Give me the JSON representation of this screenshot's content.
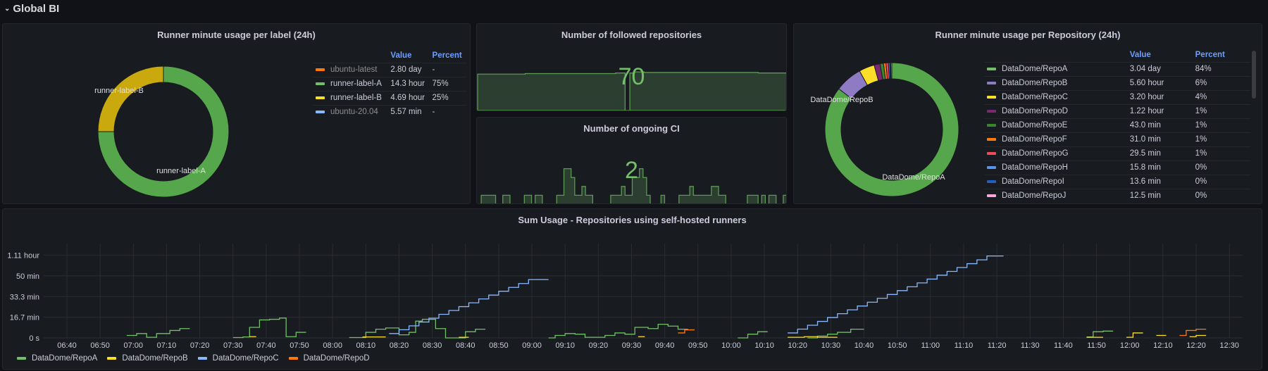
{
  "row": {
    "title": "Global BI",
    "icon": "chevron-down-icon"
  },
  "label_panel": {
    "title": "Runner minute usage per label (24h)",
    "columns": [
      "Value",
      "Percent"
    ],
    "rows": [
      {
        "name": "ubuntu-latest",
        "value": "2.80 day",
        "percent": "-",
        "color": "#ff780a",
        "dim": true
      },
      {
        "name": "runner-label-A",
        "value": "14.3 hour",
        "percent": "75%",
        "color": "#73bf69",
        "dim": false
      },
      {
        "name": "runner-label-B",
        "value": "4.69 hour",
        "percent": "25%",
        "color": "#fade2a",
        "dim": false
      },
      {
        "name": "ubuntu-20.04",
        "value": "5.57 min",
        "percent": "-",
        "color": "#8ab8ff",
        "dim": true
      }
    ],
    "slices": [
      {
        "label": "runner-label-A",
        "percent": 75,
        "color": "#56a64b"
      },
      {
        "label": "runner-label-B",
        "percent": 25,
        "color": "#c9a90d"
      }
    ]
  },
  "followed": {
    "title": "Number of followed repositories",
    "value": "70",
    "sparkline": [
      66,
      66,
      66,
      66,
      66,
      66,
      66,
      66,
      66,
      66,
      67,
      67,
      67,
      67,
      67,
      67,
      67,
      67,
      67,
      67,
      67,
      67,
      67,
      67,
      67,
      67,
      67,
      67,
      67,
      68,
      68,
      0,
      68,
      70,
      70,
      69,
      69,
      69,
      69,
      69,
      69,
      69,
      69,
      69,
      69,
      69,
      69,
      69,
      69,
      69,
      69,
      69,
      69,
      69,
      69,
      69,
      69,
      69,
      69,
      68,
      68,
      68,
      68,
      68,
      68
    ]
  },
  "ongoing": {
    "title": "Number of ongoing CI",
    "value": "2",
    "sparkline": [
      0,
      1,
      1,
      1,
      1,
      0,
      0,
      1,
      1,
      0,
      0,
      0,
      0,
      1,
      1,
      0,
      1,
      1,
      0,
      0,
      0,
      0,
      1,
      1,
      4,
      4,
      3,
      1,
      1,
      2,
      1,
      1,
      0,
      0,
      0,
      0,
      0,
      1,
      1,
      1,
      2,
      1,
      1,
      3,
      3,
      4,
      3,
      1,
      0,
      0,
      0,
      1,
      0,
      0,
      0,
      0,
      1,
      1,
      1,
      2,
      1,
      1,
      1,
      1,
      1,
      2,
      2,
      1,
      1,
      0,
      0,
      0,
      0,
      0,
      0,
      1,
      1,
      1,
      0,
      1,
      0,
      1,
      1,
      0,
      0,
      1
    ]
  },
  "repo_panel": {
    "title": "Runner minute usage per Repository (24h)",
    "columns": [
      "Value",
      "Percent"
    ],
    "rows": [
      {
        "name": "DataDome/RepoA",
        "value": "3.04 day",
        "percent": "84%",
        "color": "#73bf69",
        "minutes": 4378
      },
      {
        "name": "DataDome/RepoB",
        "value": "5.60 hour",
        "percent": "6%",
        "color": "#8f7ac4",
        "minutes": 336
      },
      {
        "name": "DataDome/RepoC",
        "value": "3.20 hour",
        "percent": "4%",
        "color": "#fade2a",
        "minutes": 192
      },
      {
        "name": "DataDome/RepoD",
        "value": "1.22 hour",
        "percent": "1%",
        "color": "#7b2870",
        "minutes": 73.2
      },
      {
        "name": "DataDome/RepoE",
        "value": "43.0 min",
        "percent": "1%",
        "color": "#37872d",
        "minutes": 43
      },
      {
        "name": "DataDome/RepoF",
        "value": "31.0 min",
        "percent": "1%",
        "color": "#ff780a",
        "minutes": 31
      },
      {
        "name": "DataDome/RepoG",
        "value": "29.5 min",
        "percent": "1%",
        "color": "#f2495c",
        "minutes": 29.5
      },
      {
        "name": "DataDome/RepoH",
        "value": "15.8 min",
        "percent": "0%",
        "color": "#5794f2",
        "minutes": 15.8
      },
      {
        "name": "DataDome/RepoI",
        "value": "13.6 min",
        "percent": "0%",
        "color": "#1f60c4",
        "minutes": 13.6
      },
      {
        "name": "DataDome/RepoJ",
        "value": "12.5 min",
        "percent": "0%",
        "color": "#ffa6dc",
        "minutes": 12.5
      }
    ],
    "pie_labels": [
      "DataDome/RepoB",
      "DataDome/RepoA"
    ]
  },
  "chart_data": {
    "type": "line",
    "title": "Sum Usage - Repositories using self-hosted runners",
    "xlim": [
      "06:33",
      "12:34"
    ],
    "x_ticks": [
      "06:40",
      "06:50",
      "07:00",
      "07:10",
      "07:20",
      "07:30",
      "07:40",
      "07:50",
      "08:00",
      "08:10",
      "08:20",
      "08:30",
      "08:40",
      "08:50",
      "09:00",
      "09:10",
      "09:20",
      "09:30",
      "09:40",
      "09:50",
      "10:00",
      "10:10",
      "10:20",
      "10:30",
      "10:40",
      "10:50",
      "11:00",
      "11:10",
      "11:20",
      "11:30",
      "11:40",
      "11:50",
      "12:00",
      "12:10",
      "12:20",
      "12:30"
    ],
    "ylim_min": [
      0,
      76
    ],
    "y_ticks": [
      {
        "v": 0,
        "label": "0 s"
      },
      {
        "v": 16.7,
        "label": "16.7 min"
      },
      {
        "v": 33.3,
        "label": "33.3 min"
      },
      {
        "v": 50,
        "label": "50 min"
      },
      {
        "v": 66.7,
        "label": "1.11 hour"
      }
    ],
    "grid": true,
    "legend_placement": "bottom-left",
    "series": [
      {
        "name": "DataDome/RepoA",
        "color": "#73bf69",
        "segments": [
          [
            [
              "06:58",
              2
            ],
            [
              "07:01",
              3.5
            ],
            [
              "07:04",
              0.5
            ],
            [
              "07:07",
              3.5
            ],
            [
              "07:11",
              6
            ],
            [
              "07:14",
              7.5
            ],
            [
              "07:17",
              7.5
            ]
          ],
          [
            [
              "07:30",
              0.3
            ],
            [
              "07:33",
              0.8
            ],
            [
              "07:35",
              8.5
            ],
            [
              "07:38",
              14.5
            ],
            [
              "07:41",
              15
            ],
            [
              "07:44",
              16
            ],
            [
              "07:46",
              1
            ],
            [
              "07:49",
              4.5
            ],
            [
              "07:52",
              4.5
            ]
          ],
          [
            [
              "08:05",
              0.3
            ],
            [
              "08:10",
              4.5
            ],
            [
              "08:13",
              7
            ],
            [
              "08:16",
              8
            ],
            [
              "08:20",
              2.5
            ],
            [
              "08:23",
              4.5
            ],
            [
              "08:25",
              13.5
            ],
            [
              "08:27",
              15
            ],
            [
              "08:31",
              7.5
            ],
            [
              "08:34",
              0
            ],
            [
              "08:40",
              5
            ],
            [
              "08:43",
              7
            ],
            [
              "08:46",
              7
            ]
          ],
          [
            [
              "09:05",
              0
            ],
            [
              "09:07",
              2
            ],
            [
              "09:10",
              3.5
            ],
            [
              "09:13",
              3
            ],
            [
              "09:16",
              0.5
            ],
            [
              "09:22",
              2
            ],
            [
              "09:25",
              4
            ],
            [
              "09:28",
              3
            ],
            [
              "09:31",
              8.5
            ],
            [
              "09:35",
              7.5
            ],
            [
              "09:38",
              11
            ],
            [
              "09:41",
              9.5
            ],
            [
              "09:44",
              7
            ],
            [
              "09:47",
              7
            ]
          ],
          [
            [
              "10:02",
              0
            ],
            [
              "10:05",
              3
            ],
            [
              "10:08",
              5
            ],
            [
              "10:11",
              5
            ]
          ],
          [
            [
              "10:23",
              0
            ],
            [
              "10:26",
              1.5
            ],
            [
              "10:29",
              3
            ],
            [
              "10:32",
              4.5
            ],
            [
              "10:36",
              7
            ],
            [
              "10:40",
              7
            ]
          ],
          [
            [
              "11:47",
              0.8
            ],
            [
              "11:49",
              5
            ],
            [
              "11:52",
              5.5
            ],
            [
              "11:55",
              5.5
            ]
          ]
        ]
      },
      {
        "name": "DataDome/RepoB",
        "color": "#fade2a",
        "segments": [
          [
            [
              "07:35",
              1
            ],
            [
              "07:37",
              1
            ]
          ],
          [
            [
              "08:09",
              0.8
            ],
            [
              "08:16",
              0.8
            ]
          ],
          [
            [
              "08:38",
              0.5
            ],
            [
              "08:41",
              0.5
            ]
          ],
          [
            [
              "09:32",
              1
            ],
            [
              "09:34",
              1
            ]
          ],
          [
            [
              "10:17",
              0.5
            ],
            [
              "10:22",
              1
            ],
            [
              "10:26",
              0.5
            ],
            [
              "10:32",
              0.5
            ]
          ],
          [
            [
              "11:47",
              0.5
            ],
            [
              "11:52",
              0.5
            ]
          ],
          [
            [
              "11:59",
              0.5
            ],
            [
              "12:01",
              4
            ],
            [
              "12:04",
              4
            ]
          ],
          [
            [
              "12:08",
              2
            ],
            [
              "12:11",
              2
            ]
          ],
          [
            [
              "12:18",
              1
            ],
            [
              "12:20",
              2
            ],
            [
              "12:23",
              2
            ]
          ]
        ]
      },
      {
        "name": "DataDome/RepoC",
        "color": "#8ab8ff",
        "segments": [
          [
            [
              "08:17",
              3.5
            ],
            [
              "08:20",
              6.6
            ],
            [
              "08:23",
              9.7
            ],
            [
              "08:26",
              12.8
            ],
            [
              "08:29",
              15.9
            ],
            [
              "08:32",
              19
            ],
            [
              "08:35",
              22.1
            ],
            [
              "08:38",
              25.2
            ],
            [
              "08:41",
              28.3
            ],
            [
              "08:44",
              31.4
            ],
            [
              "08:47",
              34.5
            ],
            [
              "08:50",
              37.6
            ],
            [
              "08:53",
              40.7
            ],
            [
              "08:56",
              43.8
            ],
            [
              "08:59",
              47
            ],
            [
              "09:05",
              47
            ]
          ],
          [
            [
              "10:17",
              4
            ],
            [
              "10:20",
              7.1
            ],
            [
              "10:23",
              10.2
            ],
            [
              "10:26",
              13.3
            ],
            [
              "10:29",
              16.4
            ],
            [
              "10:32",
              19.5
            ],
            [
              "10:35",
              22.6
            ],
            [
              "10:38",
              25.7
            ],
            [
              "10:41",
              28.8
            ],
            [
              "10:44",
              31.9
            ],
            [
              "10:47",
              35
            ],
            [
              "10:50",
              38.1
            ],
            [
              "10:53",
              41.2
            ],
            [
              "10:56",
              44.3
            ],
            [
              "10:59",
              47.4
            ],
            [
              "11:02",
              50.5
            ],
            [
              "11:05",
              53.6
            ],
            [
              "11:08",
              56.7
            ],
            [
              "11:11",
              59.8
            ],
            [
              "11:14",
              62.9
            ],
            [
              "11:17",
              66
            ],
            [
              "11:22",
              66
            ]
          ]
        ]
      },
      {
        "name": "DataDome/RepoD",
        "color": "#ff780a",
        "segments": [
          [
            [
              "09:44",
              4
            ],
            [
              "09:46",
              6.5
            ],
            [
              "09:49",
              6.5
            ]
          ],
          [
            [
              "12:15",
              2
            ],
            [
              "12:17",
              6
            ],
            [
              "12:20",
              7
            ],
            [
              "12:23",
              7
            ]
          ]
        ]
      }
    ]
  }
}
